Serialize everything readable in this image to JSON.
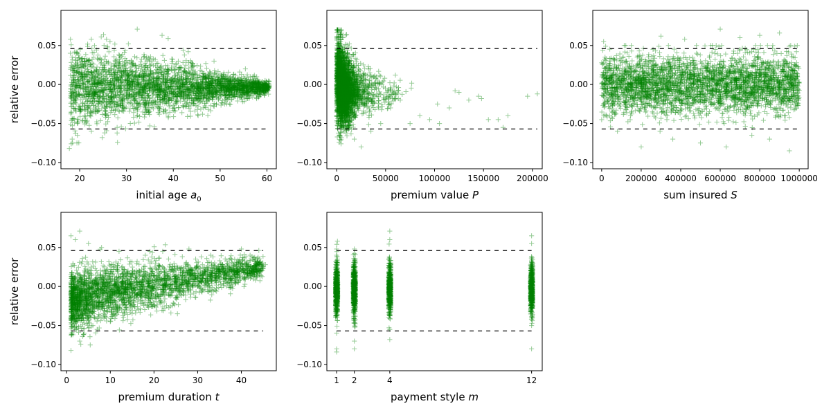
{
  "chart_data": [
    {
      "type": "scatter",
      "xlabel": "initial age ",
      "xlabel_sym": "a",
      "xlabel_sub": "0",
      "ylabel": "relative error",
      "xlim": [
        16,
        62
      ],
      "ylim": [
        -0.108,
        0.095
      ],
      "xticks": [
        20,
        30,
        40,
        50,
        60
      ],
      "xtick_labels": [
        "20",
        "30",
        "40",
        "50",
        "60"
      ],
      "yticks": [
        0.05,
        0.0,
        -0.05,
        -0.1
      ],
      "ytick_labels": [
        "0.05",
        "0.00",
        "−0.05",
        "−0.10"
      ],
      "ref_lines": [
        0.046,
        -0.057
      ],
      "ref_x": [
        18,
        60
      ],
      "marker": "+",
      "color": "#008000",
      "series": [
        {
          "x": [
            17.8,
            18.2,
            24.6,
            25.1,
            32.3,
            37.6,
            38.9,
            20.1,
            22.5,
            28.0,
            30.4,
            35.0,
            42.1,
            45.3,
            48.7,
            52.0,
            55.4,
            58.2,
            60.1,
            18.0,
            19.5,
            21.0,
            23.3,
            26.8,
            29.5,
            33.7,
            40.2,
            44.0,
            47.5,
            50.8,
            54.1,
            57.0,
            59.6,
            18.4,
            24.8
          ],
          "y": [
            -0.082,
            -0.076,
            0.061,
            0.064,
            0.071,
            0.063,
            0.059,
            0.045,
            -0.06,
            -0.055,
            0.052,
            -0.053,
            0.044,
            -0.04,
            0.03,
            -0.025,
            0.02,
            -0.015,
            -0.008,
            0.04,
            -0.045,
            0.03,
            -0.035,
            0.025,
            -0.02,
            0.035,
            -0.03,
            0.025,
            -0.018,
            0.015,
            -0.012,
            0.01,
            0.005,
            -0.07,
            -0.068
          ]
        }
      ]
    },
    {
      "type": "scatter",
      "xlabel": "premium value ",
      "xlabel_sym": "P",
      "xlabel_sub": "",
      "ylabel": "",
      "xlim": [
        -10000,
        210000
      ],
      "ylim": [
        -0.108,
        0.095
      ],
      "xticks": [
        0,
        50000,
        100000,
        150000,
        200000
      ],
      "xtick_labels": [
        "0",
        "50000",
        "100000",
        "150000",
        "200000"
      ],
      "yticks": [
        0.05,
        0.0,
        -0.05,
        -0.1
      ],
      "ytick_labels": [
        "0.05",
        "0.00",
        "−0.05",
        "−0.10"
      ],
      "ref_lines": [
        0.046,
        -0.057
      ],
      "ref_x": [
        0,
        205000
      ],
      "marker": "+",
      "color": "#008000",
      "series": [
        {
          "x": [
            1200,
            2000,
            3000,
            5000,
            8000,
            12000,
            18000,
            25000,
            35000,
            45000,
            55000,
            65000,
            75000,
            85000,
            95000,
            105000,
            115000,
            125000,
            135000,
            145000,
            155000,
            165000,
            175000,
            195000,
            205000,
            103000,
            121000,
            148000,
            170000,
            60000
          ],
          "y": [
            0.07,
            0.06,
            0.045,
            0.03,
            0.02,
            0.01,
            -0.07,
            -0.08,
            -0.06,
            -0.05,
            -0.03,
            -0.02,
            -0.05,
            -0.04,
            -0.045,
            -0.05,
            -0.03,
            -0.01,
            -0.02,
            -0.015,
            -0.045,
            -0.045,
            -0.04,
            -0.015,
            -0.012,
            -0.025,
            -0.008,
            -0.018,
            -0.055,
            0.012
          ]
        }
      ]
    },
    {
      "type": "scatter",
      "xlabel": "sum insured ",
      "xlabel_sym": "S",
      "xlabel_sub": "",
      "ylabel": "",
      "xlim": [
        -45000,
        1045000
      ],
      "ylim": [
        -0.108,
        0.095
      ],
      "xticks": [
        0,
        200000,
        400000,
        600000,
        800000,
        1000000
      ],
      "xtick_labels": [
        "0",
        "200000",
        "400000",
        "600000",
        "800000",
        "1000000"
      ],
      "yticks": [
        0.05,
        0.0,
        -0.05,
        -0.1
      ],
      "ytick_labels": [
        "0.05",
        "0.00",
        "−0.05",
        "−0.10"
      ],
      "ref_lines": [
        0.046,
        -0.057
      ],
      "ref_x": [
        0,
        1000000
      ],
      "marker": "+",
      "color": "#008000",
      "series": [
        {
          "x": [
            10000,
            80000,
            150000,
            200000,
            260000,
            300000,
            360000,
            420000,
            500000,
            560000,
            600000,
            630000,
            700000,
            760000,
            800000,
            850000,
            900000,
            950000,
            990000,
            40000,
            180000,
            330000,
            480000,
            620000,
            770000,
            930000,
            120000,
            270000,
            450000,
            720000
          ],
          "y": [
            0.055,
            -0.06,
            0.05,
            -0.08,
            0.045,
            0.062,
            -0.07,
            0.058,
            -0.075,
            0.05,
            0.071,
            -0.08,
            0.06,
            -0.065,
            0.063,
            -0.07,
            0.066,
            -0.085,
            0.05,
            -0.04,
            0.035,
            -0.045,
            0.04,
            -0.05,
            0.045,
            -0.04,
            0.03,
            -0.03,
            0.025,
            -0.035
          ]
        }
      ]
    },
    {
      "type": "scatter",
      "xlabel": "premium duration ",
      "xlabel_sym": "t",
      "xlabel_sub": "",
      "ylabel": "relative error",
      "xlim": [
        -1.3,
        48
      ],
      "ylim": [
        -0.108,
        0.095
      ],
      "xticks": [
        0,
        10,
        20,
        30,
        40
      ],
      "xtick_labels": [
        "0",
        "10",
        "20",
        "30",
        "40"
      ],
      "yticks": [
        0.05,
        0.0,
        -0.05,
        -0.1
      ],
      "ytick_labels": [
        "0.05",
        "0.00",
        "−0.05",
        "−0.10"
      ],
      "ref_lines": [
        0.046,
        -0.057
      ],
      "ref_x": [
        1,
        45
      ],
      "marker": "+",
      "color": "#008000",
      "series": [
        {
          "x": [
            1,
            1,
            2,
            3,
            4,
            5,
            6,
            8,
            10,
            12,
            15,
            18,
            20,
            22,
            25,
            28,
            30,
            33,
            35,
            38,
            40,
            42,
            44,
            45.5,
            3,
            7,
            13,
            19,
            26,
            36
          ],
          "y": [
            -0.082,
            0.065,
            0.06,
            0.071,
            -0.06,
            0.055,
            -0.05,
            0.05,
            -0.045,
            0.045,
            -0.035,
            0.04,
            -0.025,
            0.045,
            -0.015,
            0.048,
            0.0,
            0.04,
            0.01,
            0.03,
            0.048,
            0.04,
            0.046,
            0.028,
            -0.07,
            -0.055,
            -0.04,
            -0.02,
            -0.01,
            0.02
          ]
        }
      ]
    },
    {
      "type": "scatter",
      "xlabel": "payment style ",
      "xlabel_sym": "m",
      "xlabel_sub": "",
      "ylabel": "",
      "xlim": [
        0.45,
        12.6
      ],
      "ylim": [
        -0.108,
        0.095
      ],
      "xticks": [
        1,
        2,
        4,
        12
      ],
      "xtick_labels": [
        "1",
        "2",
        "4",
        "12"
      ],
      "yticks": [
        0.05,
        0.0,
        -0.05,
        -0.1
      ],
      "ytick_labels": [
        "0.05",
        "0.00",
        "−0.05",
        "−0.10"
      ],
      "ref_lines": [
        0.046,
        -0.057
      ],
      "ref_x": [
        1,
        12
      ],
      "marker": "+",
      "color": "#008000",
      "series": [
        {
          "x": [
            1,
            1,
            1,
            1,
            2,
            2,
            2,
            2,
            4,
            4,
            4,
            4,
            12,
            12,
            12,
            12
          ],
          "y": [
            -0.084,
            -0.08,
            0.04,
            -0.06,
            0.048,
            -0.07,
            -0.08,
            0.042,
            0.071,
            0.06,
            -0.068,
            -0.055,
            0.065,
            -0.08,
            0.055,
            -0.05
          ]
        }
      ]
    }
  ]
}
